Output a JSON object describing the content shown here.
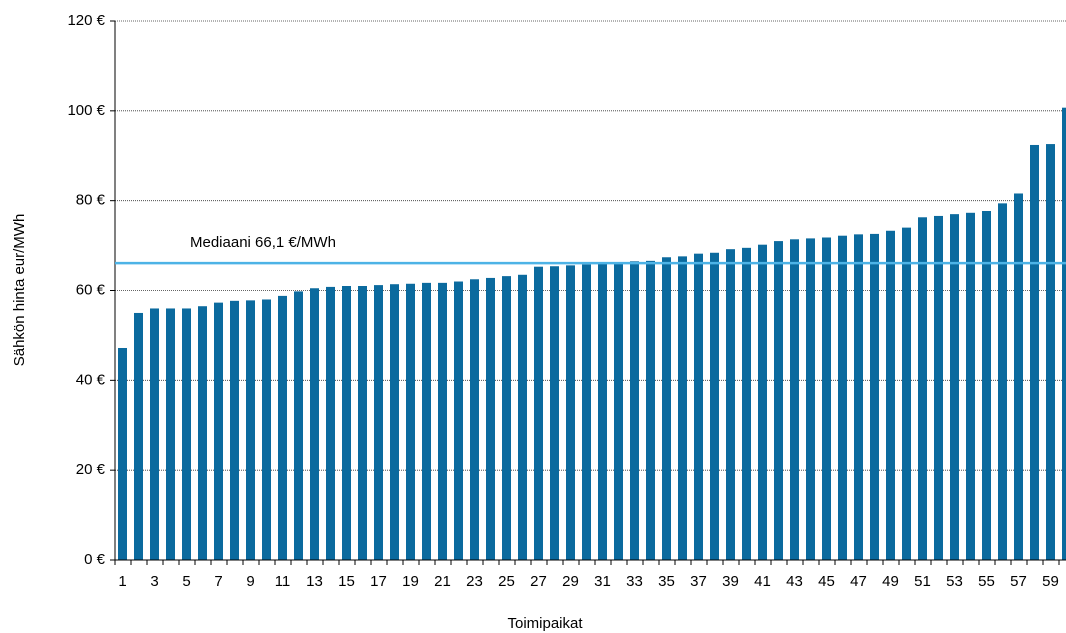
{
  "chart_data": {
    "type": "bar",
    "y_label": "Sähkön hinta eur/MWh",
    "x_label": "Toimipaikat",
    "categories": [
      1,
      null,
      3,
      null,
      5,
      null,
      7,
      null,
      9,
      null,
      11,
      null,
      13,
      null,
      15,
      null,
      17,
      null,
      19,
      null,
      21,
      null,
      23,
      null,
      25,
      null,
      27,
      null,
      29,
      null,
      31,
      null,
      33,
      null,
      35,
      null,
      37,
      null,
      39,
      null,
      41,
      null,
      43,
      null,
      45,
      null,
      47,
      null,
      49,
      null,
      51,
      null,
      53,
      null,
      55,
      null,
      57,
      null,
      59,
      null
    ],
    "values": [
      47.2,
      55,
      56,
      56,
      56,
      56.5,
      57.3,
      57.7,
      57.8,
      58,
      58.8,
      59.8,
      60.5,
      60.8,
      61,
      61,
      61.2,
      61.4,
      61.5,
      61.7,
      61.7,
      62,
      62.5,
      62.8,
      63.2,
      63.5,
      65.3,
      65.4,
      65.6,
      65.8,
      66.1,
      66.2,
      66.5,
      66.6,
      67.4,
      67.6,
      68.2,
      68.4,
      69.2,
      69.5,
      70.2,
      71,
      71.4,
      71.6,
      71.8,
      72.2,
      72.5,
      72.6,
      73.3,
      74,
      76.3,
      76.6,
      77,
      77.3,
      77.7,
      79.4,
      81.6,
      92.4,
      92.6,
      100.7
    ],
    "color": "#0b6a9e",
    "ylim": [
      0,
      120
    ],
    "yticks": [
      {
        "value": 0,
        "label": "0 €"
      },
      {
        "value": 20,
        "label": "20 €"
      },
      {
        "value": 40,
        "label": "40 €"
      },
      {
        "value": 60,
        "label": "60 €"
      },
      {
        "value": 80,
        "label": "80 €"
      },
      {
        "value": 100,
        "label": "100 €"
      },
      {
        "value": 120,
        "label": "120 €"
      }
    ],
    "grid": true,
    "reference_line": {
      "text": "Mediaani 66,1 €/MWh",
      "value": 66.1,
      "color": "#4db3e6"
    }
  }
}
